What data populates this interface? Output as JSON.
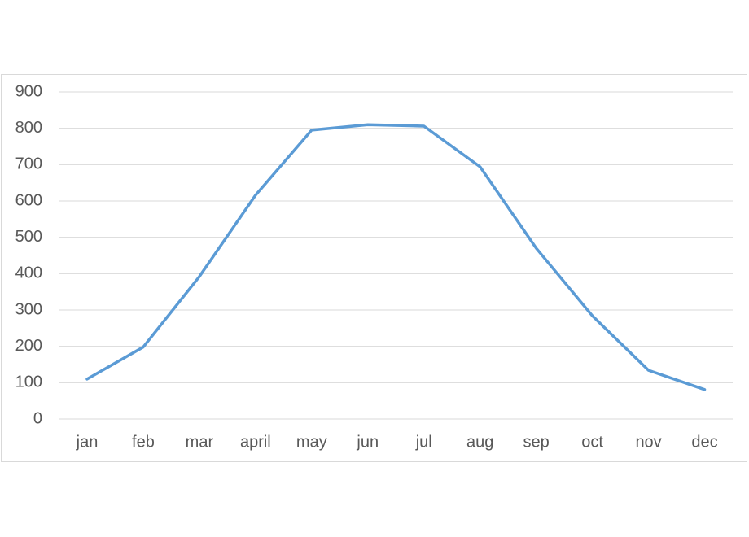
{
  "chart_data": {
    "type": "line",
    "categories": [
      "jan",
      "feb",
      "mar",
      "april",
      "may",
      "jun",
      "jul",
      "aug",
      "sep",
      "oct",
      "nov",
      "dec"
    ],
    "series": [
      {
        "color": "#5b9bd5",
        "values": [
          110,
          198,
          392,
          616,
          795,
          810,
          806,
          694,
          470,
          284,
          134,
          81
        ]
      }
    ],
    "ylim": [
      0,
      900
    ],
    "yticks": [
      0,
      100,
      200,
      300,
      400,
      500,
      600,
      700,
      800,
      900
    ],
    "grid": true
  }
}
